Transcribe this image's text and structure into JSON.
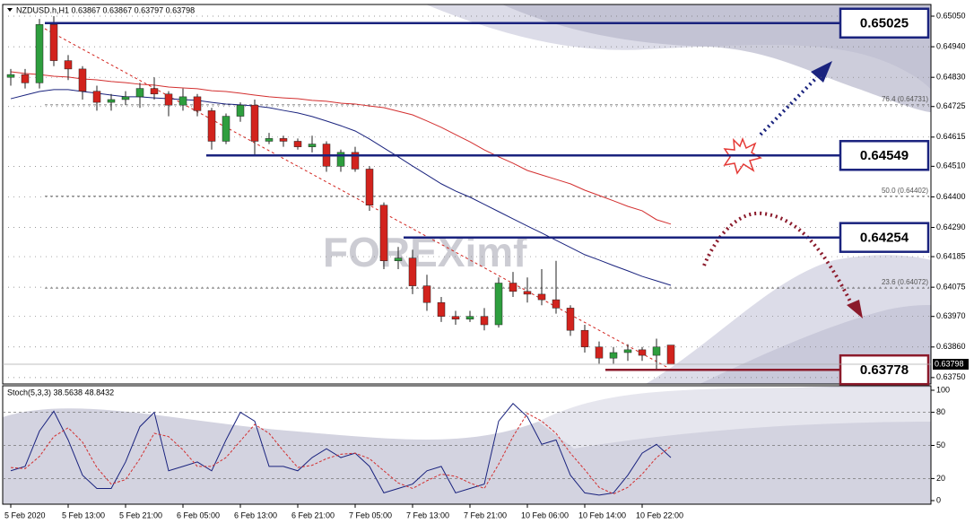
{
  "chart_data": [
    {
      "type": "candlestick",
      "title": "NZDUSD.h,H1  0.63867 0.63867 0.63797 0.63798",
      "categories": [
        "5 Feb 2020",
        null,
        null,
        null,
        "5 Feb 13:00",
        null,
        null,
        null,
        "5 Feb 21:00",
        null,
        null,
        null,
        "6 Feb 05:00",
        null,
        null,
        null,
        "6 Feb 13:00",
        null,
        null,
        null,
        "6 Feb 21:00",
        null,
        null,
        null,
        "7 Feb 05:00",
        null,
        null,
        null,
        "7 Feb 13:00",
        null,
        null,
        null,
        "7 Feb 21:00",
        null,
        null,
        null,
        "10 Feb 06:00",
        null,
        null,
        null,
        "10 Feb 14:00",
        null,
        null,
        null,
        "10 Feb 22:00",
        null,
        null
      ],
      "open": [
        0.6483,
        0.6484,
        0.6481,
        0.6502,
        0.6489,
        0.6486,
        0.6478,
        0.6474,
        0.6475,
        0.6476,
        0.6479,
        0.6477,
        0.6473,
        0.6476,
        0.6471,
        0.646,
        0.6469,
        0.6473,
        0.646,
        0.6461,
        0.646,
        0.6458,
        0.6459,
        0.6451,
        0.6456,
        0.645,
        0.6437,
        0.6417,
        0.6418,
        0.6408,
        0.6402,
        0.6397,
        0.6396,
        0.6397,
        0.6394,
        0.6409,
        0.6406,
        0.6405,
        0.6403,
        0.64,
        0.6392,
        0.6386,
        0.6382,
        0.6384,
        0.6385,
        0.6383,
        0.63867
      ],
      "high": [
        0.6486,
        0.6486,
        0.6504,
        0.6505,
        0.6491,
        0.6487,
        0.648,
        0.6477,
        0.6478,
        0.6481,
        0.6483,
        0.6478,
        0.6479,
        0.6477,
        0.6472,
        0.647,
        0.6474,
        0.6475,
        0.6463,
        0.6462,
        0.6461,
        0.6462,
        0.646,
        0.6457,
        0.6458,
        0.6451,
        0.6438,
        0.6422,
        0.6421,
        0.6412,
        0.6404,
        0.6399,
        0.6399,
        0.64,
        0.6411,
        0.6413,
        0.6411,
        0.6414,
        0.6417,
        0.6401,
        0.6394,
        0.6388,
        0.6386,
        0.6387,
        0.6386,
        0.6389,
        0.63867
      ],
      "low": [
        0.648,
        0.6479,
        0.6479,
        0.6487,
        0.6482,
        0.6475,
        0.6471,
        0.6471,
        0.6473,
        0.6472,
        0.6475,
        0.6469,
        0.6471,
        0.6469,
        0.6457,
        0.6459,
        0.6467,
        0.6455,
        0.6459,
        0.6458,
        0.6457,
        0.6456,
        0.6449,
        0.6449,
        0.6449,
        0.6435,
        0.6414,
        0.6414,
        0.6405,
        0.6399,
        0.6395,
        0.6394,
        0.6395,
        0.6392,
        0.6393,
        0.6404,
        0.6402,
        0.6401,
        0.6398,
        0.639,
        0.6384,
        0.638,
        0.638,
        0.6381,
        0.6381,
        0.6378,
        0.63797
      ],
      "close": [
        0.6484,
        0.6481,
        0.6502,
        0.6489,
        0.6486,
        0.6478,
        0.6474,
        0.6475,
        0.6476,
        0.6479,
        0.6477,
        0.6473,
        0.6476,
        0.6471,
        0.646,
        0.6469,
        0.6473,
        0.646,
        0.6461,
        0.646,
        0.6458,
        0.6459,
        0.6451,
        0.6456,
        0.645,
        0.6437,
        0.6417,
        0.6418,
        0.6408,
        0.6402,
        0.6397,
        0.6396,
        0.6397,
        0.6394,
        0.6409,
        0.6406,
        0.6405,
        0.6403,
        0.64,
        0.6392,
        0.6386,
        0.6382,
        0.6384,
        0.6385,
        0.6383,
        0.6386,
        0.63798
      ],
      "up_color": "#2e9e3e",
      "down_color": "#d2231d",
      "lines": [
        {
          "color": "#1a237e",
          "values": [
            0.64753,
            0.64766,
            0.64779,
            0.64786,
            0.64786,
            0.64779,
            0.64773,
            0.64766,
            0.6476,
            0.6476,
            0.64756,
            0.64753,
            0.6475,
            0.64747,
            0.6474,
            0.64734,
            0.64731,
            0.64727,
            0.64721,
            0.64711,
            0.64702,
            0.64689,
            0.64673,
            0.64656,
            0.64637,
            0.64608,
            0.64576,
            0.64544,
            0.64511,
            0.64479,
            0.64447,
            0.64421,
            0.64399,
            0.64373,
            0.64347,
            0.64321,
            0.64295,
            0.6427,
            0.64244,
            0.64218,
            0.64192,
            0.64173,
            0.64153,
            0.64134,
            0.64114,
            0.64098,
            0.64082
          ]
        },
        {
          "color": "#d32f2f",
          "values": [
            0.6485,
            0.64844,
            0.6484,
            0.64834,
            0.64831,
            0.64824,
            0.64821,
            0.64815,
            0.64811,
            0.64805,
            0.64802,
            0.64795,
            0.64792,
            0.64789,
            0.64782,
            0.64779,
            0.64773,
            0.64766,
            0.6476,
            0.64756,
            0.64753,
            0.64747,
            0.64744,
            0.64737,
            0.64734,
            0.64727,
            0.64721,
            0.64708,
            0.64695,
            0.64673,
            0.6465,
            0.64624,
            0.64598,
            0.64569,
            0.64544,
            0.64521,
            0.64495,
            0.64479,
            0.64463,
            0.64447,
            0.64424,
            0.64405,
            0.64386,
            0.64366,
            0.6435,
            0.64318,
            0.64302
          ]
        }
      ],
      "ylim": [
        0.63727,
        0.65092
      ],
      "yticks": [
        {
          "value": 0.6505,
          "label": "0.65050"
        },
        {
          "value": 0.6494,
          "label": "0.64940"
        },
        {
          "value": 0.6483,
          "label": "0.64830"
        },
        0.64725,
        0.64615,
        {
          "value": 0.6451,
          "label": "0.64510"
        },
        {
          "value": 0.644,
          "label": "0.64400"
        },
        {
          "value": 0.6429,
          "label": "0.64290"
        },
        0.64185,
        0.64075,
        {
          "value": 0.6397,
          "label": "0.63970"
        },
        {
          "value": 0.6386,
          "label": "0.63860"
        },
        {
          "value": 0.6375,
          "label": "0.63750"
        }
      ],
      "current_price": 0.63798,
      "levels": [
        {
          "value": 0.65025,
          "color": "#1a237e"
        },
        {
          "value": 0.64549,
          "color": "#1a237e"
        },
        {
          "value": 0.64254,
          "color": "#1a237e"
        },
        {
          "value": 0.63778,
          "color": "#8b1a2b"
        }
      ],
      "fib_levels": [
        {
          "value": 0.64731,
          "label": "76.4 (0.64731)"
        },
        {
          "value": 0.64402,
          "label": "50.0 (0.64402)"
        },
        {
          "value": 0.64072,
          "label": "23.6 (0.64072)"
        }
      ],
      "watermark": "FOREXimf"
    },
    {
      "type": "stochastic",
      "title": "Stoch(5,3,3) 38.5638 48.8432",
      "series": [
        {
          "color": "#1a237e",
          "values": [
            27,
            31,
            63,
            81,
            55,
            23,
            11,
            11,
            35,
            67,
            80,
            27,
            31,
            35,
            27,
            55,
            80,
            72,
            31,
            31,
            27,
            39,
            47,
            39,
            43,
            31,
            7,
            11,
            15,
            27,
            31,
            7,
            11,
            15,
            72,
            88,
            76,
            51,
            55,
            23,
            7,
            5,
            7,
            23,
            43,
            51,
            39
          ]
        },
        {
          "color": "#d32f2f",
          "dash": true,
          "values": [
            30,
            29,
            40,
            58,
            66,
            53,
            30,
            15,
            19,
            38,
            61,
            58,
            46,
            31,
            31,
            39,
            54,
            69,
            61,
            45,
            30,
            32,
            38,
            42,
            43,
            38,
            27,
            16,
            11,
            18,
            24,
            22,
            16,
            11,
            33,
            58,
            79,
            72,
            61,
            43,
            28,
            12,
            6,
            12,
            24,
            39,
            49
          ]
        }
      ],
      "ylim": [
        0,
        100
      ],
      "yticks": [
        100,
        80,
        50,
        20,
        0
      ]
    }
  ]
}
